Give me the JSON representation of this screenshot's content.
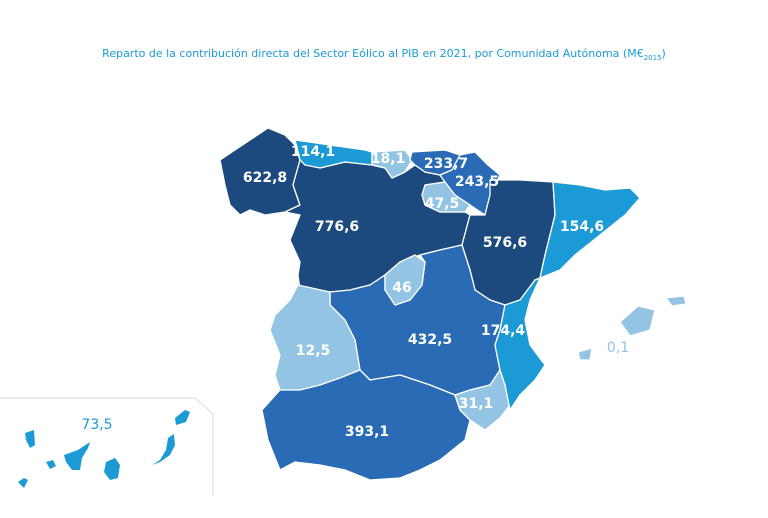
{
  "title": "Reparto de la contribución directa del Sector Eólico al PIB en 2021, por Comunidad Autónoma (M€",
  "title_sub": "2015",
  "title_close": ")",
  "colors": {
    "dark": "#1c4a7e",
    "medium": "#2a6bb5",
    "bright": "#1b9ad6",
    "light": "#93c4e3"
  },
  "regions": {
    "galicia": {
      "value": "622,8",
      "tier": "dark"
    },
    "asturias": {
      "value": "114,1",
      "tier": "bright"
    },
    "cantabria": {
      "value": "18,1",
      "tier": "light"
    },
    "pais_vasco": {
      "value": "233,7",
      "tier": "medium"
    },
    "navarra": {
      "value": "243,5",
      "tier": "medium"
    },
    "la_rioja": {
      "value": "47,5",
      "tier": "light"
    },
    "castilla_leon": {
      "value": "776,6",
      "tier": "dark"
    },
    "aragon": {
      "value": "576,6",
      "tier": "dark"
    },
    "cataluna": {
      "value": "154,6",
      "tier": "bright"
    },
    "madrid": {
      "value": "46",
      "tier": "light"
    },
    "extremadura": {
      "value": "12,5",
      "tier": "light"
    },
    "castilla_la_mancha": {
      "value": "432,5",
      "tier": "medium"
    },
    "valencia": {
      "value": "174,4",
      "tier": "bright"
    },
    "baleares": {
      "value": "0,1",
      "tier": "light"
    },
    "murcia": {
      "value": "31,1",
      "tier": "light"
    },
    "andalucia": {
      "value": "393,1",
      "tier": "medium"
    },
    "canarias": {
      "value": "73,5",
      "tier": "bright"
    }
  }
}
